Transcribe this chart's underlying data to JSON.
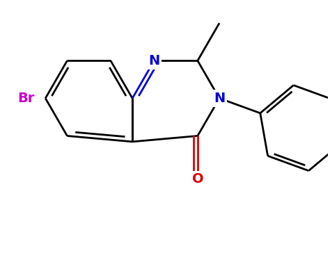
{
  "background_color": "#ffffff",
  "bond_color": "#000000",
  "N_color": "#0000dd",
  "O_color": "#dd0000",
  "Br_color": "#cc00cc",
  "bond_width": 2.0,
  "figsize": [
    4.74,
    3.64
  ],
  "dpi": 100,
  "xlim": [
    -1.0,
    6.5
  ],
  "ylim": [
    -2.8,
    2.5
  ]
}
